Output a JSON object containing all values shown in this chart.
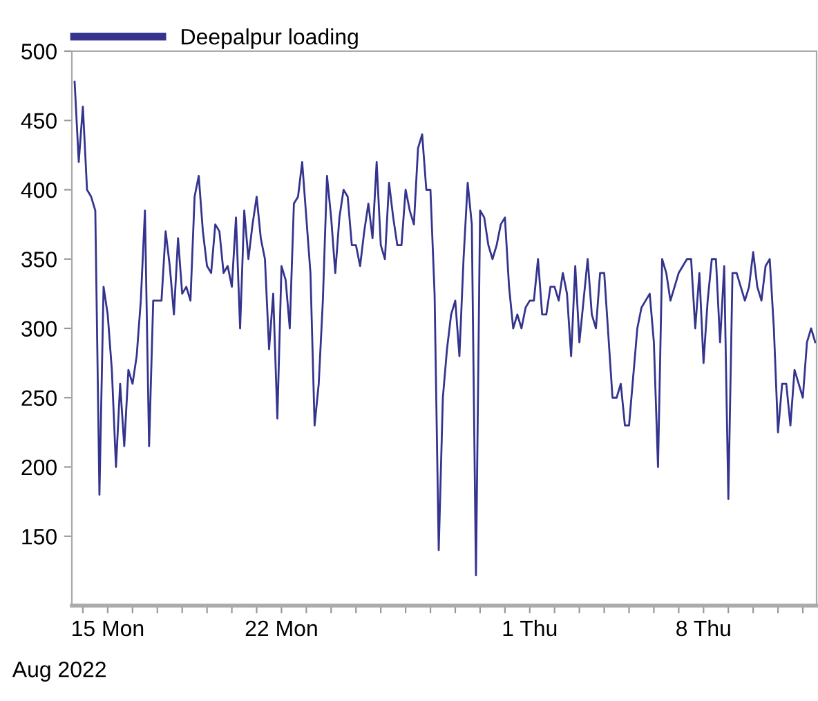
{
  "chart_data": {
    "type": "line",
    "xlabel": "Aug 2022",
    "x": [
      "2022-08-13T16:00",
      "2022-08-13T20:00",
      "2022-08-14T00:00",
      "2022-08-14T04:00",
      "2022-08-14T08:00",
      "2022-08-14T12:00",
      "2022-08-14T16:00",
      "2022-08-14T20:00",
      "2022-08-15T00:00",
      "2022-08-15T04:00",
      "2022-08-15T08:00",
      "2022-08-15T12:00",
      "2022-08-15T16:00",
      "2022-08-15T20:00",
      "2022-08-16T00:00",
      "2022-08-16T04:00",
      "2022-08-16T08:00",
      "2022-08-16T12:00",
      "2022-08-16T16:00",
      "2022-08-16T20:00",
      "2022-08-17T00:00",
      "2022-08-17T04:00",
      "2022-08-17T08:00",
      "2022-08-17T12:00",
      "2022-08-17T16:00",
      "2022-08-17T20:00",
      "2022-08-18T00:00",
      "2022-08-18T04:00",
      "2022-08-18T08:00",
      "2022-08-18T12:00",
      "2022-08-18T16:00",
      "2022-08-18T20:00",
      "2022-08-19T00:00",
      "2022-08-19T04:00",
      "2022-08-19T08:00",
      "2022-08-19T12:00",
      "2022-08-19T16:00",
      "2022-08-19T20:00",
      "2022-08-20T00:00",
      "2022-08-20T04:00",
      "2022-08-20T08:00",
      "2022-08-20T12:00",
      "2022-08-20T16:00",
      "2022-08-20T20:00",
      "2022-08-21T00:00",
      "2022-08-21T04:00",
      "2022-08-21T08:00",
      "2022-08-21T12:00",
      "2022-08-21T16:00",
      "2022-08-21T20:00",
      "2022-08-22T00:00",
      "2022-08-22T04:00",
      "2022-08-22T08:00",
      "2022-08-22T12:00",
      "2022-08-22T16:00",
      "2022-08-22T20:00",
      "2022-08-23T00:00",
      "2022-08-23T04:00",
      "2022-08-23T08:00",
      "2022-08-23T12:00",
      "2022-08-23T16:00",
      "2022-08-23T20:00",
      "2022-08-24T00:00",
      "2022-08-24T04:00",
      "2022-08-24T08:00",
      "2022-08-24T12:00",
      "2022-08-24T16:00",
      "2022-08-24T20:00",
      "2022-08-25T00:00",
      "2022-08-25T04:00",
      "2022-08-25T08:00",
      "2022-08-25T12:00",
      "2022-08-25T16:00",
      "2022-08-25T20:00",
      "2022-08-26T00:00",
      "2022-08-26T04:00",
      "2022-08-26T08:00",
      "2022-08-26T12:00",
      "2022-08-26T16:00",
      "2022-08-26T20:00",
      "2022-08-27T00:00",
      "2022-08-27T04:00",
      "2022-08-27T08:00",
      "2022-08-27T12:00",
      "2022-08-27T16:00",
      "2022-08-27T20:00",
      "2022-08-28T00:00",
      "2022-08-28T04:00",
      "2022-08-28T08:00",
      "2022-08-28T12:00",
      "2022-08-28T16:00",
      "2022-08-28T20:00",
      "2022-08-29T00:00",
      "2022-08-29T04:00",
      "2022-08-29T08:00",
      "2022-08-29T12:00",
      "2022-08-29T16:00",
      "2022-08-29T20:00",
      "2022-08-30T00:00",
      "2022-08-30T04:00",
      "2022-08-30T08:00",
      "2022-08-30T12:00",
      "2022-08-30T16:00",
      "2022-08-30T20:00",
      "2022-08-31T00:00",
      "2022-08-31T04:00",
      "2022-08-31T08:00",
      "2022-08-31T12:00",
      "2022-08-31T16:00",
      "2022-08-31T20:00",
      "2022-09-01T00:00",
      "2022-09-01T04:00",
      "2022-09-01T08:00",
      "2022-09-01T12:00",
      "2022-09-01T16:00",
      "2022-09-01T20:00",
      "2022-09-02T00:00",
      "2022-09-02T04:00",
      "2022-09-02T08:00",
      "2022-09-02T12:00",
      "2022-09-02T16:00",
      "2022-09-02T20:00",
      "2022-09-03T00:00",
      "2022-09-03T04:00",
      "2022-09-03T08:00",
      "2022-09-03T12:00",
      "2022-09-03T16:00",
      "2022-09-03T20:00",
      "2022-09-04T00:00",
      "2022-09-04T04:00",
      "2022-09-04T08:00",
      "2022-09-04T12:00",
      "2022-09-04T16:00",
      "2022-09-04T20:00",
      "2022-09-05T00:00",
      "2022-09-05T04:00",
      "2022-09-05T08:00",
      "2022-09-05T12:00",
      "2022-09-05T16:00",
      "2022-09-05T20:00",
      "2022-09-06T00:00",
      "2022-09-06T04:00",
      "2022-09-06T08:00",
      "2022-09-06T12:00",
      "2022-09-06T16:00",
      "2022-09-06T20:00",
      "2022-09-07T00:00",
      "2022-09-07T04:00",
      "2022-09-07T08:00",
      "2022-09-07T12:00",
      "2022-09-07T16:00",
      "2022-09-07T20:00",
      "2022-09-08T00:00",
      "2022-09-08T04:00",
      "2022-09-08T08:00",
      "2022-09-08T12:00",
      "2022-09-08T16:00",
      "2022-09-08T20:00",
      "2022-09-09T00:00",
      "2022-09-09T04:00",
      "2022-09-09T08:00",
      "2022-09-09T12:00",
      "2022-09-09T16:00",
      "2022-09-09T20:00",
      "2022-09-10T00:00",
      "2022-09-10T04:00",
      "2022-09-10T08:00",
      "2022-09-10T12:00",
      "2022-09-10T16:00",
      "2022-09-10T20:00",
      "2022-09-11T00:00",
      "2022-09-11T04:00",
      "2022-09-11T08:00",
      "2022-09-11T12:00",
      "2022-09-11T16:00",
      "2022-09-11T20:00",
      "2022-09-12T00:00",
      "2022-09-12T04:00",
      "2022-09-12T08:00",
      "2022-09-12T12:00"
    ],
    "series": [
      {
        "name": "Deepalpur loading",
        "color": "#34348f",
        "values": [
          478,
          420,
          460,
          400,
          395,
          385,
          180,
          330,
          310,
          270,
          200,
          260,
          215,
          270,
          260,
          280,
          320,
          385,
          215,
          320,
          320,
          320,
          370,
          345,
          310,
          365,
          325,
          330,
          320,
          395,
          410,
          370,
          345,
          340,
          375,
          370,
          340,
          345,
          330,
          380,
          300,
          385,
          350,
          375,
          395,
          365,
          350,
          285,
          325,
          235,
          345,
          335,
          300,
          390,
          395,
          420,
          380,
          340,
          230,
          260,
          320,
          410,
          380,
          340,
          380,
          400,
          395,
          360,
          360,
          345,
          370,
          390,
          365,
          420,
          360,
          350,
          405,
          380,
          360,
          360,
          400,
          385,
          375,
          430,
          440,
          400,
          400,
          325,
          140,
          250,
          285,
          310,
          320,
          280,
          350,
          405,
          375,
          122,
          385,
          380,
          360,
          350,
          360,
          375,
          380,
          330,
          300,
          310,
          300,
          315,
          320,
          320,
          350,
          310,
          310,
          330,
          330,
          320,
          340,
          325,
          280,
          345,
          290,
          320,
          350,
          310,
          300,
          340,
          340,
          295,
          250,
          250,
          260,
          230,
          230,
          265,
          300,
          315,
          320,
          325,
          290,
          200,
          350,
          340,
          320,
          330,
          340,
          345,
          350,
          350,
          300,
          340,
          275,
          320,
          350,
          350,
          290,
          345,
          177,
          340,
          340,
          330,
          320,
          330,
          355,
          330,
          320,
          345,
          350,
          300,
          225,
          260,
          260,
          230,
          270,
          260,
          250,
          290,
          300,
          290
        ]
      }
    ],
    "xlim": [
      "2022-08-13T13:20",
      "2022-09-12T13:20"
    ],
    "xticks": [
      {
        "value": "2022-08-14",
        "label": null
      },
      {
        "value": "2022-08-15",
        "label": "15 Mon"
      },
      {
        "value": "2022-08-16",
        "label": null
      },
      {
        "value": "2022-08-17",
        "label": null
      },
      {
        "value": "2022-08-18",
        "label": null
      },
      {
        "value": "2022-08-19",
        "label": null
      },
      {
        "value": "2022-08-20",
        "label": null
      },
      {
        "value": "2022-08-21",
        "label": null
      },
      {
        "value": "2022-08-22",
        "label": "22 Mon"
      },
      {
        "value": "2022-08-23",
        "label": null
      },
      {
        "value": "2022-08-24",
        "label": null
      },
      {
        "value": "2022-08-25",
        "label": null
      },
      {
        "value": "2022-08-26",
        "label": null
      },
      {
        "value": "2022-08-27",
        "label": null
      },
      {
        "value": "2022-08-28",
        "label": null
      },
      {
        "value": "2022-08-29",
        "label": null
      },
      {
        "value": "2022-08-30",
        "label": null
      },
      {
        "value": "2022-08-31",
        "label": null
      },
      {
        "value": "2022-09-01",
        "label": "1 Thu"
      },
      {
        "value": "2022-09-02",
        "label": null
      },
      {
        "value": "2022-09-03",
        "label": null
      },
      {
        "value": "2022-09-04",
        "label": null
      },
      {
        "value": "2022-09-05",
        "label": null
      },
      {
        "value": "2022-09-06",
        "label": null
      },
      {
        "value": "2022-09-07",
        "label": null
      },
      {
        "value": "2022-09-08",
        "label": "8 Thu"
      },
      {
        "value": "2022-09-09",
        "label": null
      },
      {
        "value": "2022-09-10",
        "label": null
      },
      {
        "value": "2022-09-11",
        "label": null
      },
      {
        "value": "2022-09-12",
        "label": null
      }
    ],
    "ylim": [
      100,
      500
    ],
    "yticks": [
      150,
      200,
      250,
      300,
      350,
      400,
      450,
      500
    ],
    "grid": false,
    "legend": "top left",
    "marker": "none",
    "line_style": "solid"
  }
}
